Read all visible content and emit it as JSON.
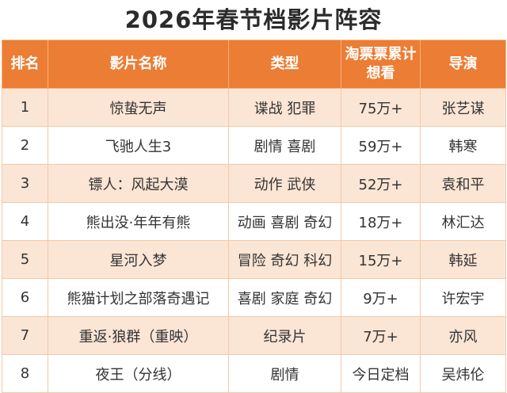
{
  "title": "2026年春节档影片阵容",
  "headers": {
    "rank": "排名",
    "name": "影片名称",
    "genre": "类型",
    "want": "淘票票累计想看",
    "director": "导演"
  },
  "rows": [
    {
      "rank": "1",
      "name": "惊蛰无声",
      "genre": "谍战 犯罪",
      "want": "75万+",
      "director": "张艺谋"
    },
    {
      "rank": "2",
      "name": "飞驰人生3",
      "genre": "剧情 喜剧",
      "want": "59万+",
      "director": "韩寒"
    },
    {
      "rank": "3",
      "name": "镖人：风起大漠",
      "genre": "动作 武侠",
      "want": "52万+",
      "director": "袁和平"
    },
    {
      "rank": "4",
      "name": "熊出没·年年有熊",
      "genre": "动画 喜剧 奇幻",
      "want": "18万+",
      "director": "林汇达"
    },
    {
      "rank": "5",
      "name": "星河入梦",
      "genre": "冒险 奇幻 科幻",
      "want": "15万+",
      "director": "韩延"
    },
    {
      "rank": "6",
      "name": "熊猫计划之部落奇遇记",
      "genre": "喜剧 家庭 奇幻",
      "want": "9万+",
      "director": "许宏宇"
    },
    {
      "rank": "7",
      "name": "重返·狼群（重映）",
      "genre": "纪录片",
      "want": "7万+",
      "director": "亦风"
    },
    {
      "rank": "8",
      "name": "夜王（分线）",
      "genre": "剧情",
      "want": "今日定档",
      "director": "吴炜伦"
    }
  ]
}
